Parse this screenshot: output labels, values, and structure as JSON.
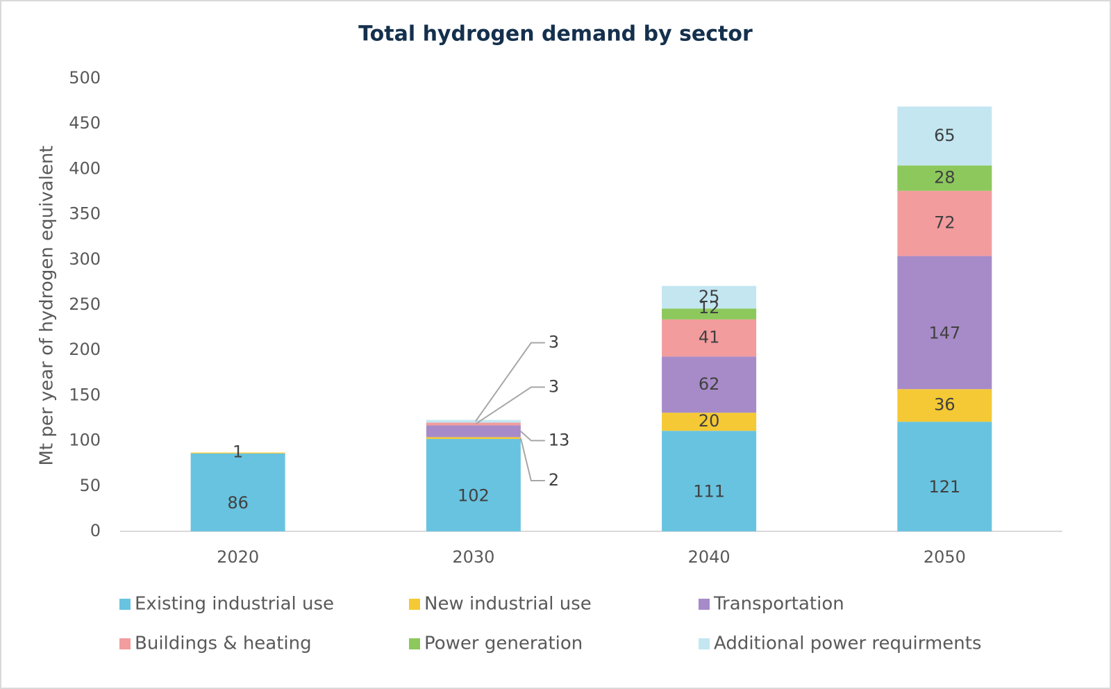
{
  "chart_data": {
    "type": "stacked_bar",
    "title": "Total hydrogen demand by sector",
    "y_label": "Mt per year of hydrogen equivalent",
    "categories": [
      "2020",
      "2030",
      "2040",
      "2050"
    ],
    "series": [
      {
        "name": "Existing industrial use",
        "color": "#68c3e0",
        "values": [
          86,
          102,
          111,
          121
        ]
      },
      {
        "name": "New industrial use",
        "color": "#f4c935",
        "values": [
          1,
          2,
          20,
          36
        ]
      },
      {
        "name": "Transportation",
        "color": "#a78bc8",
        "values": [
          null,
          13,
          62,
          147
        ]
      },
      {
        "name": "Buildings & heating",
        "color": "#f29c9e",
        "values": [
          null,
          3,
          41,
          72
        ]
      },
      {
        "name": "Power generation",
        "color": "#8cc85c",
        "values": [
          null,
          null,
          12,
          28
        ]
      },
      {
        "name": "Additional power requirments",
        "color": "#c3e6f1",
        "values": [
          null,
          3,
          25,
          65
        ]
      }
    ],
    "ylim": [
      0,
      500
    ],
    "yticks": [
      0,
      50,
      100,
      150,
      200,
      250,
      300,
      350,
      400,
      450,
      500
    ]
  }
}
